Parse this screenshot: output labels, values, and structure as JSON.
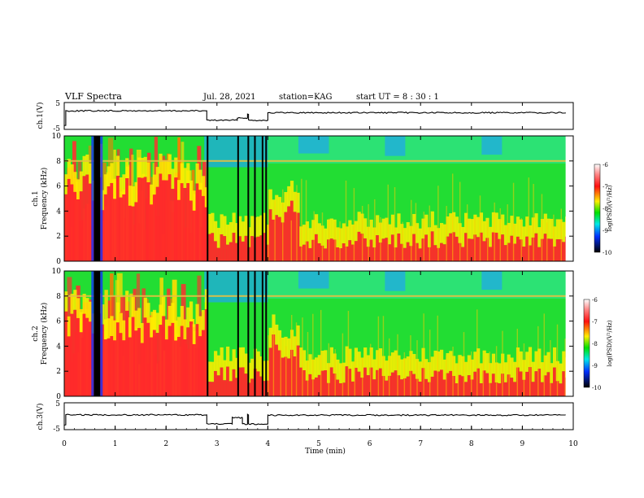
{
  "header": {
    "title": "VLF Spectra",
    "date": "Jul. 28, 2021",
    "station": "station=KAG",
    "start": "start UT =  8 : 30 : 1"
  },
  "chart_data": [
    {
      "type": "line",
      "panel": "ch1-voltage",
      "ylabel": "ch.1(V)",
      "ylim": [
        -5,
        5
      ],
      "y_ticks": [
        "5",
        "-5"
      ],
      "x_range": [
        0,
        10
      ],
      "segments": [
        {
          "x": [
            0,
            0.03
          ],
          "y": [
            -3.5,
            -3.5
          ]
        },
        {
          "x": [
            0.03,
            2.8
          ],
          "y": [
            1.9,
            1.9
          ]
        },
        {
          "x": [
            2.8,
            3.4
          ],
          "y": [
            -1.6,
            -1.6
          ]
        },
        {
          "x": [
            3.4,
            3.6
          ],
          "y": [
            -0.7,
            -0.7
          ]
        },
        {
          "x": [
            3.6,
            3.62
          ],
          "y": [
            0.6,
            0.6
          ]
        },
        {
          "x": [
            3.62,
            4.0
          ],
          "y": [
            -1.6,
            -1.6
          ]
        },
        {
          "x": [
            4.0,
            9.85
          ],
          "y": [
            1.2,
            1.2
          ]
        }
      ]
    },
    {
      "type": "heatmap",
      "panel": "ch1-spectrogram",
      "ylabel": "ch.1",
      "ylabel2": "Frequency (kHz)",
      "xlim": [
        0,
        10
      ],
      "ylim": [
        0,
        10
      ],
      "y_ticks": [
        "0",
        "2",
        "4",
        "6",
        "8",
        "10"
      ],
      "colorbar": {
        "label": "log(PSD)(V²/Hz)",
        "range": [
          -10,
          -6
        ],
        "ticks": [
          "-6",
          "-7",
          "-8",
          "-9",
          "-10"
        ]
      }
    },
    {
      "type": "heatmap",
      "panel": "ch2-spectrogram",
      "ylabel": "ch.2",
      "ylabel2": "Frequency (kHz)",
      "xlim": [
        0,
        10
      ],
      "ylim": [
        0,
        10
      ],
      "y_ticks": [
        "0",
        "2",
        "4",
        "6",
        "8",
        "10"
      ],
      "colorbar": {
        "label": "log(PSD)(V²/Hz)",
        "range": [
          -10,
          -6
        ],
        "ticks": [
          "-6",
          "-7",
          "-8",
          "-9",
          "-10"
        ]
      }
    },
    {
      "type": "line",
      "panel": "ch3-voltage",
      "ylabel": "ch.3(V)",
      "ylim": [
        -5,
        5
      ],
      "y_ticks": [
        "5",
        "-5"
      ],
      "x_range": [
        0,
        10
      ],
      "xlabel": "Time (min)",
      "x_ticks": [
        "0",
        "1",
        "2",
        "3",
        "4",
        "5",
        "6",
        "7",
        "8",
        "9",
        "10"
      ],
      "segments": [
        {
          "x": [
            0,
            0.03
          ],
          "y": [
            -3.2,
            -3.2
          ]
        },
        {
          "x": [
            0.03,
            2.8
          ],
          "y": [
            0.5,
            0.5
          ]
        },
        {
          "x": [
            2.8,
            3.3
          ],
          "y": [
            -2.9,
            -2.9
          ]
        },
        {
          "x": [
            3.3,
            3.5
          ],
          "y": [
            -0.6,
            -0.6
          ]
        },
        {
          "x": [
            3.5,
            3.6
          ],
          "y": [
            -2.9,
            -2.9
          ]
        },
        {
          "x": [
            3.6,
            3.62
          ],
          "y": [
            0.5,
            0.5
          ]
        },
        {
          "x": [
            3.62,
            4.0
          ],
          "y": [
            -2.9,
            -2.9
          ]
        },
        {
          "x": [
            4.0,
            9.85
          ],
          "y": [
            0.4,
            0.4
          ]
        }
      ]
    }
  ],
  "spectrogram": {
    "colors": [
      "#ffffff",
      "#ff3030",
      "#ffee00",
      "#00e000",
      "#00e8e8",
      "#0030ff",
      "#000000"
    ],
    "dark_columns": [
      0.58,
      2.8,
      3.4,
      3.6,
      3.73,
      3.88,
      3.95
    ],
    "blue_patches": [
      {
        "x": [
          2.75,
          4.0
        ],
        "y": [
          7.5,
          10
        ]
      },
      {
        "x": [
          4.6,
          5.2
        ],
        "y": [
          8.6,
          10
        ]
      },
      {
        "x": [
          6.3,
          6.7
        ],
        "y": [
          8.4,
          10
        ]
      },
      {
        "x": [
          8.2,
          8.6
        ],
        "y": [
          8.5,
          10
        ]
      }
    ],
    "line_8khz": 8.0
  }
}
